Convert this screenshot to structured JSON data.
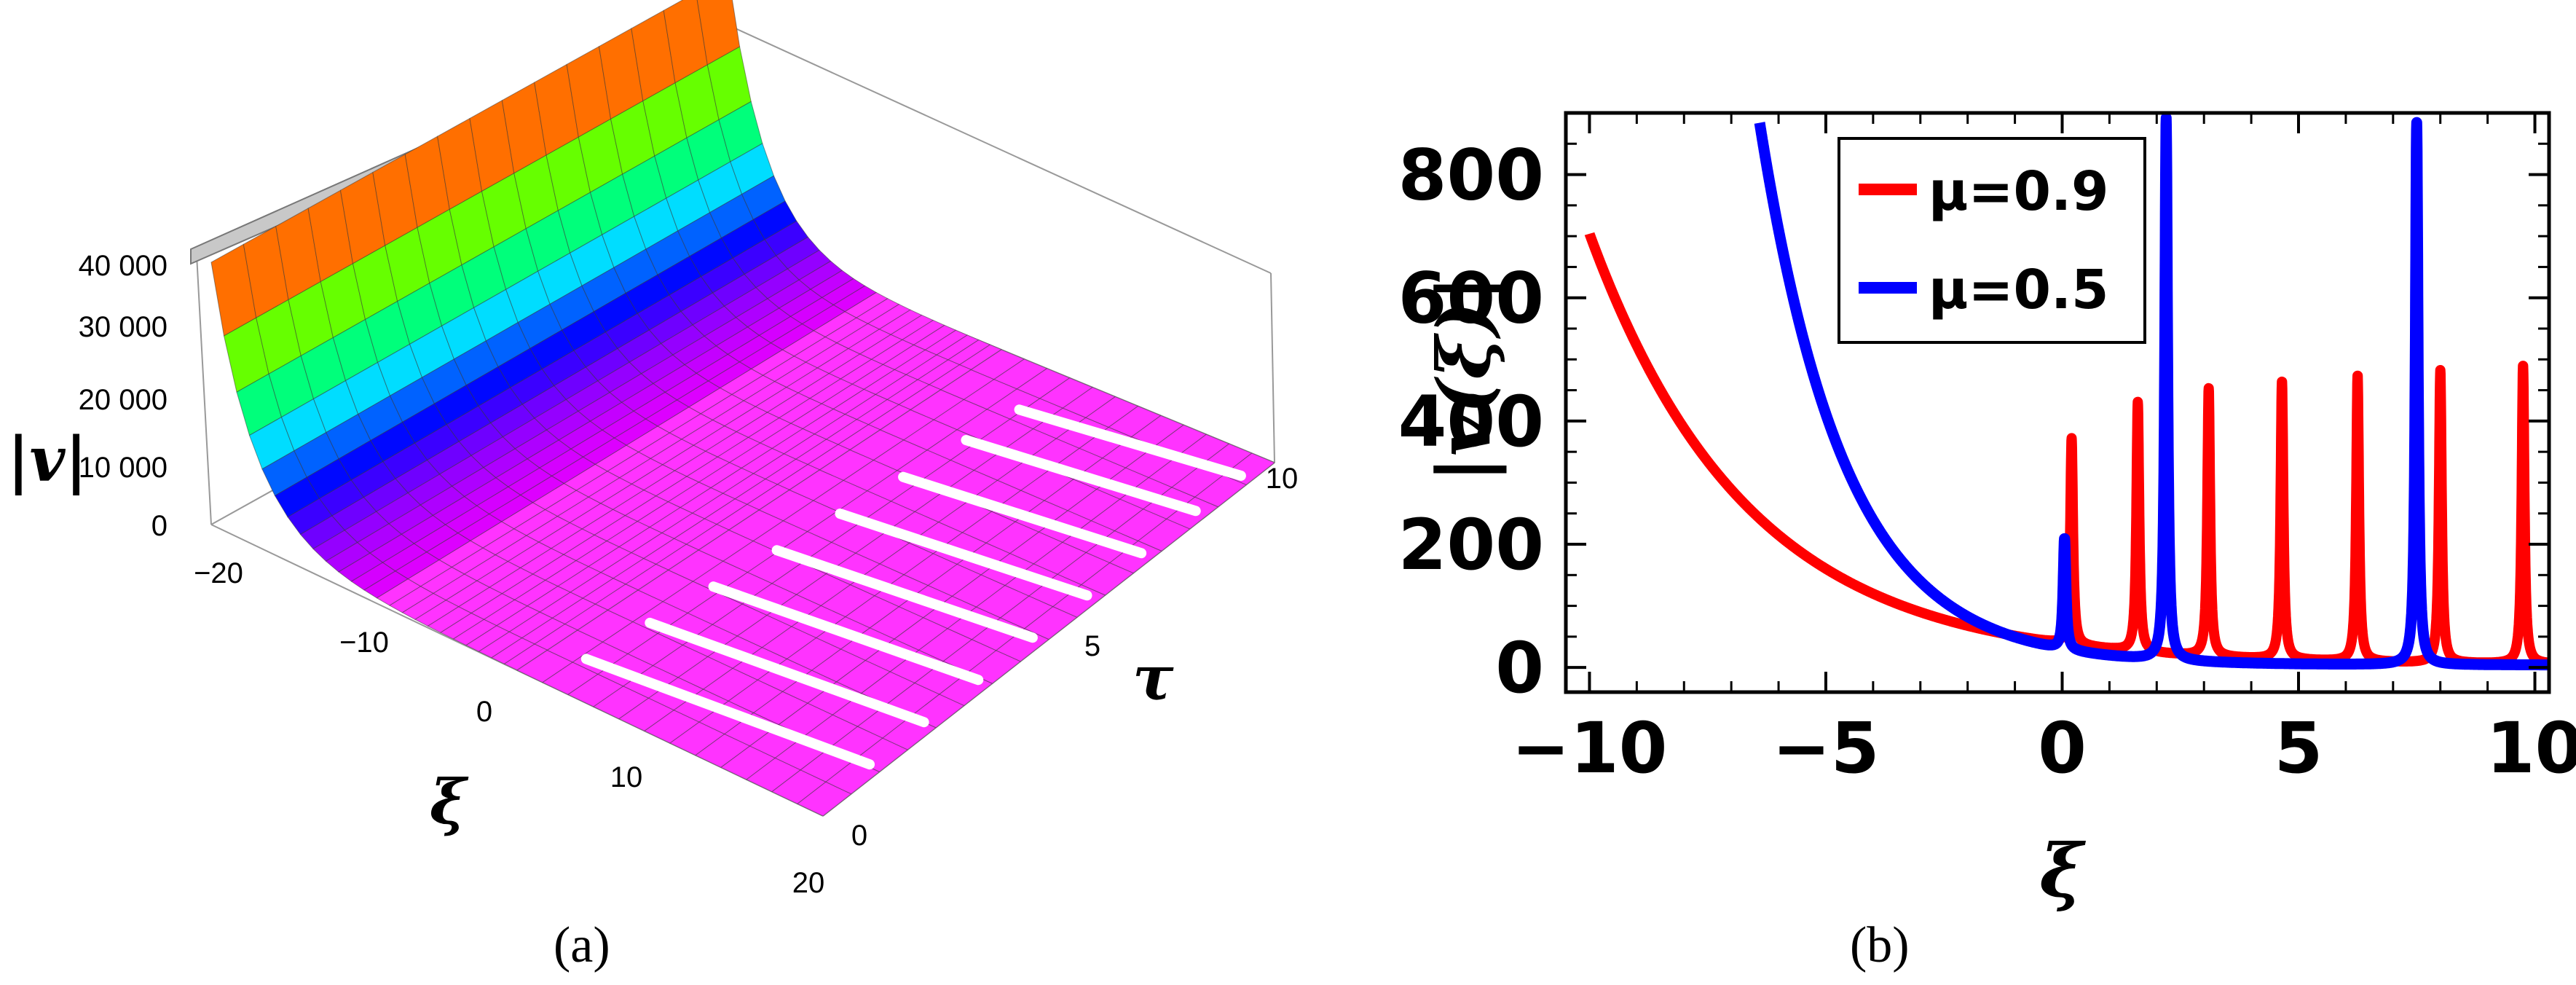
{
  "panels": {
    "a": {
      "caption": "(a)"
    },
    "b": {
      "caption": "(b)"
    }
  },
  "chart_data": [
    {
      "panel": "a",
      "type": "surface3d",
      "axes": {
        "xi": {
          "label": "ξ",
          "range": [
            -25,
            20
          ],
          "ticks": [
            "−20",
            "−10",
            "0",
            "10",
            "20"
          ]
        },
        "tau": {
          "label": "τ",
          "range": [
            0,
            11
          ],
          "ticks": [
            "0",
            "5",
            "10"
          ]
        },
        "v": {
          "label": "|v|",
          "range": [
            0,
            45000
          ],
          "ticks": [
            "0",
            "10 000",
            "20 000",
            "30 000",
            "40 000"
          ]
        }
      },
      "description_values": {
        "xi_min_value_at_left_edge": 43000,
        "colormap": "hue by height (magenta low → blue → cyan → green → yellow → red high)"
      }
    },
    {
      "panel": "b",
      "type": "line",
      "xlabel": "ξ",
      "ylabel": "|v(ξ)|",
      "xlim": [
        -10.5,
        10.3
      ],
      "ylim": [
        -40,
        900
      ],
      "xticks": [
        "−10",
        "−5",
        "0",
        "5",
        "10"
      ],
      "yticks": [
        "0",
        "200",
        "400",
        "600",
        "800"
      ],
      "legend": {
        "position": "top-center"
      },
      "series": [
        {
          "name": "μ=0.9",
          "color": "#ff0000",
          "base": {
            "x_start": -10,
            "value_at_start": 700,
            "decay": 0.3
          },
          "spikes": [
            {
              "x": 0.2,
              "peak": 335
            },
            {
              "x": 1.6,
              "peak": 405
            },
            {
              "x": 3.1,
              "peak": 435
            },
            {
              "x": 4.65,
              "peak": 452
            },
            {
              "x": 6.25,
              "peak": 465
            },
            {
              "x": 8.0,
              "peak": 475
            },
            {
              "x": 9.75,
              "peak": 485
            }
          ]
        },
        {
          "name": "μ=0.5",
          "color": "#0000ff",
          "base": {
            "x_start": -6.4,
            "value_at_start": 880,
            "decay": 0.55
          },
          "spikes": [
            {
              "x": 0.05,
              "peak": 180
            },
            {
              "x": 2.2,
              "peak": 880
            },
            {
              "x": 7.5,
              "peak": 880
            }
          ]
        }
      ]
    }
  ]
}
